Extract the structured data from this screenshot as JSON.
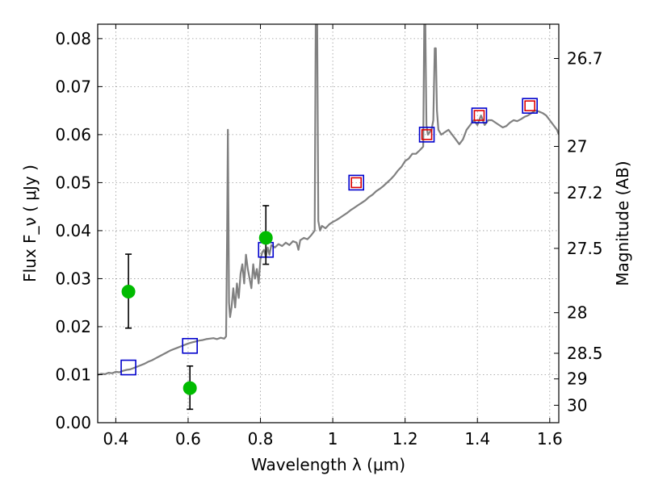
{
  "chart_data": {
    "type": "line",
    "xlabel": "Wavelength λ (μm)",
    "ylabel": "Flux F_ν ( μJy )",
    "right_ylabel": "Magnitude (AB)",
    "xlim": [
      0.35,
      1.625
    ],
    "ylim": [
      0.0,
      0.083
    ],
    "grid": true,
    "x_ticks": [
      0.4,
      0.6,
      0.8,
      1.0,
      1.2,
      1.4,
      1.6
    ],
    "x_tick_labels": [
      "0.4",
      "0.6",
      "0.8",
      "1",
      "1.2",
      "1.4",
      "1.6"
    ],
    "y_ticks": [
      0.0,
      0.01,
      0.02,
      0.03,
      0.04,
      0.05,
      0.06,
      0.07,
      0.08
    ],
    "y_tick_labels": [
      "0.00",
      "0.01",
      "0.02",
      "0.03",
      "0.04",
      "0.05",
      "0.06",
      "0.07",
      "0.08"
    ],
    "right_ticks": [
      {
        "mag": 26.7,
        "label": "26.7"
      },
      {
        "mag": 27.0,
        "label": "27"
      },
      {
        "mag": 27.2,
        "label": "27.2"
      },
      {
        "mag": 27.5,
        "label": "27.5"
      },
      {
        "mag": 28.0,
        "label": "28"
      },
      {
        "mag": 28.5,
        "label": "28.5"
      },
      {
        "mag": 29.0,
        "label": "29"
      },
      {
        "mag": 30.0,
        "label": "30"
      }
    ],
    "series": [
      {
        "kind": "spectrum",
        "color": "#808080",
        "points": [
          [
            0.35,
            0.01
          ],
          [
            0.36,
            0.0102
          ],
          [
            0.37,
            0.0101
          ],
          [
            0.38,
            0.0104
          ],
          [
            0.39,
            0.0103
          ],
          [
            0.4,
            0.0106
          ],
          [
            0.41,
            0.0105
          ],
          [
            0.42,
            0.0108
          ],
          [
            0.43,
            0.011
          ],
          [
            0.44,
            0.0111
          ],
          [
            0.45,
            0.0114
          ],
          [
            0.46,
            0.0117
          ],
          [
            0.47,
            0.012
          ],
          [
            0.48,
            0.0123
          ],
          [
            0.49,
            0.0127
          ],
          [
            0.5,
            0.013
          ],
          [
            0.51,
            0.0134
          ],
          [
            0.52,
            0.0138
          ],
          [
            0.53,
            0.0142
          ],
          [
            0.54,
            0.0146
          ],
          [
            0.55,
            0.015
          ],
          [
            0.56,
            0.0153
          ],
          [
            0.57,
            0.0156
          ],
          [
            0.58,
            0.0159
          ],
          [
            0.59,
            0.0162
          ],
          [
            0.6,
            0.0165
          ],
          [
            0.61,
            0.0167
          ],
          [
            0.62,
            0.0169
          ],
          [
            0.63,
            0.0171
          ],
          [
            0.64,
            0.0172
          ],
          [
            0.65,
            0.0174
          ],
          [
            0.66,
            0.0175
          ],
          [
            0.67,
            0.0176
          ],
          [
            0.68,
            0.0174
          ],
          [
            0.69,
            0.0177
          ],
          [
            0.7,
            0.0175
          ],
          [
            0.705,
            0.018
          ],
          [
            0.708,
            0.04
          ],
          [
            0.71,
            0.061
          ],
          [
            0.713,
            0.025
          ],
          [
            0.716,
            0.022
          ],
          [
            0.72,
            0.024
          ],
          [
            0.725,
            0.028
          ],
          [
            0.73,
            0.024
          ],
          [
            0.735,
            0.029
          ],
          [
            0.74,
            0.026
          ],
          [
            0.745,
            0.031
          ],
          [
            0.75,
            0.033
          ],
          [
            0.755,
            0.029
          ],
          [
            0.76,
            0.035
          ],
          [
            0.765,
            0.032
          ],
          [
            0.77,
            0.03
          ],
          [
            0.775,
            0.028
          ],
          [
            0.78,
            0.033
          ],
          [
            0.785,
            0.03
          ],
          [
            0.79,
            0.032
          ],
          [
            0.795,
            0.029
          ],
          [
            0.8,
            0.034
          ],
          [
            0.805,
            0.0355
          ],
          [
            0.81,
            0.036
          ],
          [
            0.815,
            0.0345
          ],
          [
            0.82,
            0.0365
          ],
          [
            0.825,
            0.035
          ],
          [
            0.83,
            0.037
          ],
          [
            0.84,
            0.0365
          ],
          [
            0.85,
            0.0372
          ],
          [
            0.86,
            0.0368
          ],
          [
            0.87,
            0.0375
          ],
          [
            0.88,
            0.037
          ],
          [
            0.89,
            0.0378
          ],
          [
            0.9,
            0.0375
          ],
          [
            0.905,
            0.036
          ],
          [
            0.91,
            0.038
          ],
          [
            0.92,
            0.0385
          ],
          [
            0.93,
            0.0382
          ],
          [
            0.94,
            0.039
          ],
          [
            0.95,
            0.04
          ],
          [
            0.953,
            0.083
          ],
          [
            0.957,
            0.083
          ],
          [
            0.96,
            0.042
          ],
          [
            0.965,
            0.04
          ],
          [
            0.97,
            0.041
          ],
          [
            0.98,
            0.0405
          ],
          [
            0.99,
            0.0413
          ],
          [
            1.0,
            0.0418
          ],
          [
            1.01,
            0.0422
          ],
          [
            1.02,
            0.0427
          ],
          [
            1.03,
            0.0432
          ],
          [
            1.04,
            0.0437
          ],
          [
            1.05,
            0.0443
          ],
          [
            1.06,
            0.0448
          ],
          [
            1.07,
            0.0453
          ],
          [
            1.08,
            0.0458
          ],
          [
            1.09,
            0.0463
          ],
          [
            1.1,
            0.047
          ],
          [
            1.11,
            0.0475
          ],
          [
            1.12,
            0.0482
          ],
          [
            1.13,
            0.0487
          ],
          [
            1.14,
            0.0493
          ],
          [
            1.15,
            0.05
          ],
          [
            1.16,
            0.0507
          ],
          [
            1.17,
            0.0515
          ],
          [
            1.18,
            0.0525
          ],
          [
            1.19,
            0.0533
          ],
          [
            1.2,
            0.0545
          ],
          [
            1.21,
            0.055
          ],
          [
            1.22,
            0.056
          ],
          [
            1.23,
            0.056
          ],
          [
            1.24,
            0.0567
          ],
          [
            1.25,
            0.0575
          ],
          [
            1.253,
            0.083
          ],
          [
            1.256,
            0.083
          ],
          [
            1.259,
            0.062
          ],
          [
            1.263,
            0.06
          ],
          [
            1.268,
            0.0605
          ],
          [
            1.273,
            0.061
          ],
          [
            1.278,
            0.063
          ],
          [
            1.282,
            0.078
          ],
          [
            1.285,
            0.078
          ],
          [
            1.288,
            0.065
          ],
          [
            1.292,
            0.061
          ],
          [
            1.3,
            0.06
          ],
          [
            1.31,
            0.0605
          ],
          [
            1.32,
            0.061
          ],
          [
            1.33,
            0.06
          ],
          [
            1.34,
            0.059
          ],
          [
            1.35,
            0.058
          ],
          [
            1.36,
            0.059
          ],
          [
            1.37,
            0.061
          ],
          [
            1.38,
            0.062
          ],
          [
            1.39,
            0.063
          ],
          [
            1.4,
            0.062
          ],
          [
            1.41,
            0.064
          ],
          [
            1.42,
            0.062
          ],
          [
            1.43,
            0.063
          ],
          [
            1.44,
            0.063
          ],
          [
            1.45,
            0.0625
          ],
          [
            1.46,
            0.062
          ],
          [
            1.47,
            0.0615
          ],
          [
            1.48,
            0.0618
          ],
          [
            1.49,
            0.0625
          ],
          [
            1.5,
            0.063
          ],
          [
            1.51,
            0.0628
          ],
          [
            1.52,
            0.0632
          ],
          [
            1.53,
            0.0637
          ],
          [
            1.54,
            0.064
          ],
          [
            1.55,
            0.0645
          ],
          [
            1.56,
            0.065
          ],
          [
            1.57,
            0.0648
          ],
          [
            1.58,
            0.0645
          ],
          [
            1.59,
            0.064
          ],
          [
            1.6,
            0.063
          ],
          [
            1.61,
            0.062
          ],
          [
            1.62,
            0.061
          ],
          [
            1.625,
            0.06
          ]
        ]
      },
      {
        "kind": "model_squares",
        "color": "#0000cc",
        "points": [
          [
            0.435,
            0.0115
          ],
          [
            0.605,
            0.016
          ],
          [
            0.815,
            0.036
          ],
          [
            1.065,
            0.05
          ],
          [
            1.26,
            0.06
          ],
          [
            1.405,
            0.064
          ],
          [
            1.545,
            0.066
          ]
        ]
      },
      {
        "kind": "observed_squares",
        "color": "#dd0000",
        "points": [
          [
            1.065,
            0.05
          ],
          [
            1.26,
            0.06
          ],
          [
            1.405,
            0.064
          ],
          [
            1.545,
            0.066
          ]
        ]
      },
      {
        "kind": "detections",
        "color": "#00bb00",
        "points": [
          {
            "x": 0.435,
            "y": 0.0273,
            "err_lo": 0.0197,
            "err_hi": 0.0351
          },
          {
            "x": 0.605,
            "y": 0.0072,
            "err_lo": 0.0028,
            "err_hi": 0.0118
          },
          {
            "x": 0.815,
            "y": 0.0385,
            "err_lo": 0.033,
            "err_hi": 0.0452
          }
        ]
      }
    ]
  }
}
